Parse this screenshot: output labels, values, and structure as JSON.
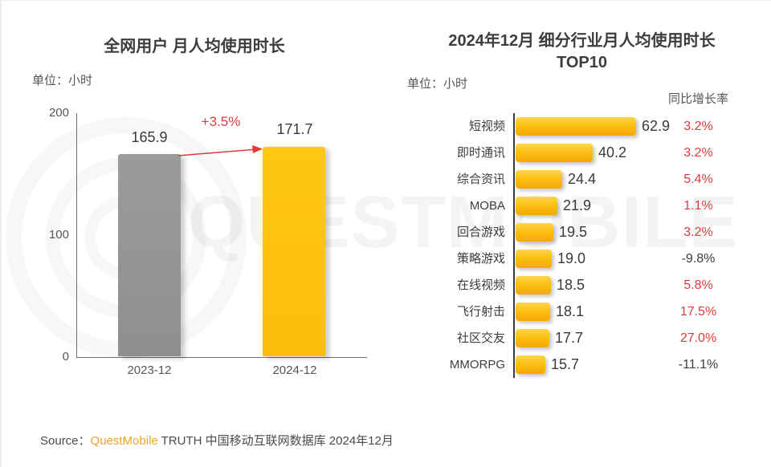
{
  "left_chart": {
    "title": "全网用户 月人均使用时长",
    "unit_label": "单位：小时",
    "growth_label": "+3.5%",
    "ytick_labels": [
      "200",
      "100",
      "0"
    ]
  },
  "right_chart": {
    "title_line1": "2024年12月 细分行业月人均使用时长",
    "title_line2": "TOP10",
    "unit_label": "单位：小时",
    "growth_header": "同比增长率"
  },
  "source": {
    "prefix": "Source：",
    "brand": "QuestMobile",
    "rest": " TRUTH 中国移动互联网数据库 2024年12月"
  },
  "watermark_text": "QUESTMOBILE",
  "colors": {
    "bar_gray": "#949494",
    "bar_yellow": "#FDC10D",
    "hbar_gradient_top": "#FFD54E",
    "hbar_gradient_bottom": "#F4A704",
    "growth_red": "#E03A3C",
    "brand_orange": "#F0A12C",
    "text_dark": "#3D3D3D",
    "text_gray": "#565656"
  },
  "chart_data": [
    {
      "type": "bar",
      "orientation": "vertical",
      "title": "全网用户 月人均使用时长",
      "unit": "小时",
      "categories": [
        "2023-12",
        "2024-12"
      ],
      "values": [
        165.9,
        171.7
      ],
      "value_labels": [
        "165.9",
        "171.7"
      ],
      "growth_annotation": "+3.5%",
      "ylim": [
        0,
        200
      ],
      "yticks": [
        0,
        100,
        200
      ],
      "bar_colors": [
        "#949494",
        "#FDC10D"
      ],
      "grid": false
    },
    {
      "type": "bar",
      "orientation": "horizontal",
      "title": "2024年12月 细分行业月人均使用时长 TOP10",
      "unit": "小时",
      "growth_header": "同比增长率",
      "categories": [
        "短视频",
        "即时通讯",
        "综合资讯",
        "MOBA",
        "回合游戏",
        "策略游戏",
        "在线视频",
        "飞行射击",
        "社区交友",
        "MMORPG"
      ],
      "values": [
        62.9,
        40.2,
        24.4,
        21.9,
        19.5,
        19.0,
        18.5,
        18.1,
        17.7,
        15.7
      ],
      "value_labels": [
        "62.9",
        "40.2",
        "24.4",
        "21.9",
        "19.5",
        "19.0",
        "18.5",
        "18.1",
        "17.7",
        "15.7"
      ],
      "growth_values": [
        3.2,
        3.2,
        5.4,
        1.1,
        3.2,
        -9.8,
        5.8,
        17.5,
        27.0,
        -11.1
      ],
      "growth_labels": [
        "3.2%",
        "3.2%",
        "5.4%",
        "1.1%",
        "3.2%",
        "-9.8%",
        "5.8%",
        "17.5%",
        "27.0%",
        "-11.1%"
      ],
      "xlim": [
        0,
        66
      ],
      "grid": false
    }
  ]
}
